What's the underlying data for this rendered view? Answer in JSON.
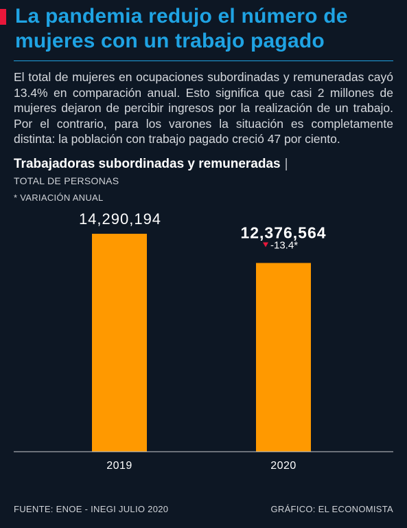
{
  "headline": "La pandemia redujo el número de mujeres con un trabajo pagado",
  "intro": "El total de mujeres en ocupaciones subordinadas y remuneradas cayó 13.4% en comparación anual. Esto significa que casi 2 millones de mujeres dejaron de percibir ingresos por la realización de un trabajo. Por el contrario, para los varones la situación es completamente distinta: la población con trabajo pagado creció 47 por ciento.",
  "colors": {
    "accent": "#e8173a",
    "headline": "#1fa3e3",
    "bar": "#ff9900",
    "background": "#0d1724",
    "down_marker": "#e8173a"
  },
  "chart_data": {
    "type": "bar",
    "title": "Trabajadoras subordinadas y remuneradas",
    "title_separator": "|",
    "unit_label": "TOTAL DE PERSONAS",
    "note": "* VARIACIÓN ANUAL",
    "categories": [
      "2019",
      "2020"
    ],
    "values": [
      14290194,
      12376564
    ],
    "value_labels": [
      "14,290,194",
      "12,376,564"
    ],
    "change_label": "-13.4*",
    "change_marker_icon": "down-triangle-icon",
    "ylim": [
      0,
      15600000
    ],
    "grid": false,
    "legend": "none"
  },
  "footer": {
    "source": "FUENTE: ENOE - INEGI JULIO 2020",
    "credit": "GRÁFICO: EL ECONOMISTA"
  }
}
